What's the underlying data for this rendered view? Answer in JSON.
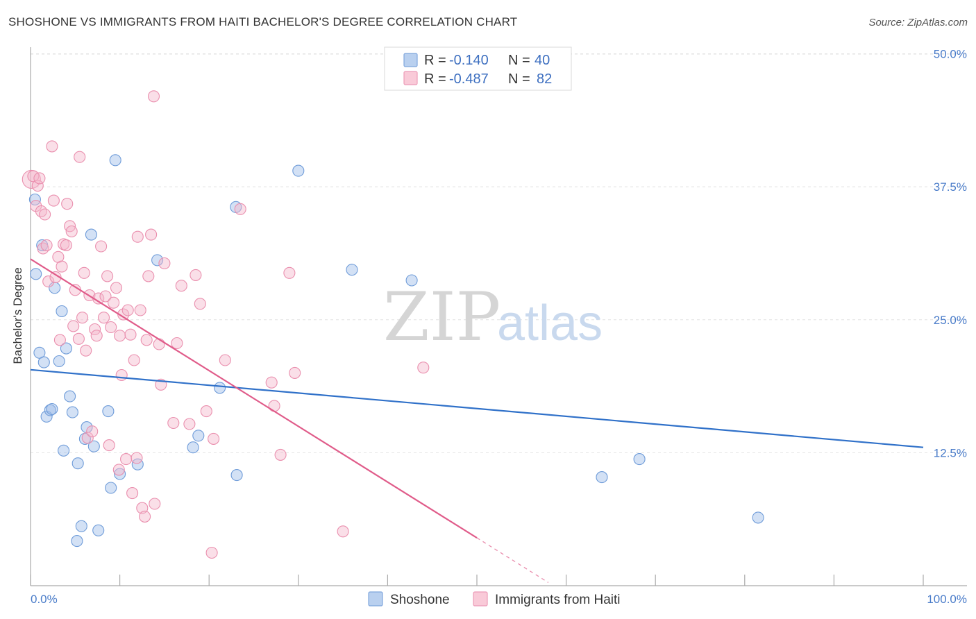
{
  "title": "SHOSHONE VS IMMIGRANTS FROM HAITI BACHELOR'S DEGREE CORRELATION CHART",
  "source": "Source: ZipAtlas.com",
  "watermark": {
    "zip": "ZIP",
    "atlas": "atlas"
  },
  "legend_top": {
    "rows": [
      {
        "r_label": "R = ",
        "r_value": "-0.140",
        "n_label": "N = ",
        "n_value": "40"
      },
      {
        "r_label": "R = ",
        "r_value": "-0.487",
        "n_label": "N = ",
        "n_value": "82"
      }
    ]
  },
  "chart_data": {
    "type": "scatter",
    "title": "SHOSHONE VS IMMIGRANTS FROM HAITI BACHELOR'S DEGREE CORRELATION CHART",
    "xlabel": "",
    "ylabel": "Bachelor's Degree",
    "xlim": [
      0,
      100
    ],
    "ylim": [
      0,
      52
    ],
    "x_tick_labels": [
      "0.0%",
      "100.0%"
    ],
    "y_ticks": [
      12.5,
      25.0,
      37.5,
      50.0
    ],
    "y_tick_labels": [
      "12.5%",
      "25.0%",
      "37.5%",
      "50.0%"
    ],
    "grid": "horizontal dashed",
    "legend_position": "bottom-center",
    "series": [
      {
        "name": "Shoshone",
        "color": "#9dbde8",
        "edge": "#6f9cd9",
        "line_color": "#3071c9",
        "trend": {
          "x0": 0,
          "y0": 20.3,
          "x1": 100,
          "y1": 13.0
        },
        "points": [
          [
            0.5,
            36.3
          ],
          [
            0.6,
            29.3
          ],
          [
            1.0,
            21.9
          ],
          [
            1.3,
            32.0
          ],
          [
            1.5,
            21.0
          ],
          [
            1.8,
            15.9
          ],
          [
            2.2,
            16.5
          ],
          [
            2.4,
            16.6
          ],
          [
            2.7,
            28.0
          ],
          [
            3.2,
            21.1
          ],
          [
            3.5,
            25.8
          ],
          [
            3.7,
            12.7
          ],
          [
            4.0,
            22.3
          ],
          [
            4.4,
            17.8
          ],
          [
            4.7,
            16.3
          ],
          [
            5.2,
            4.2
          ],
          [
            5.3,
            11.5
          ],
          [
            5.7,
            5.6
          ],
          [
            6.1,
            13.8
          ],
          [
            6.3,
            14.9
          ],
          [
            6.8,
            33.0
          ],
          [
            7.1,
            13.1
          ],
          [
            7.6,
            5.2
          ],
          [
            8.7,
            16.4
          ],
          [
            9.0,
            9.2
          ],
          [
            9.5,
            40.0
          ],
          [
            10.0,
            10.5
          ],
          [
            12.0,
            11.4
          ],
          [
            14.2,
            30.6
          ],
          [
            18.2,
            13.0
          ],
          [
            18.8,
            14.1
          ],
          [
            21.2,
            18.6
          ],
          [
            23.0,
            35.6
          ],
          [
            23.1,
            10.4
          ],
          [
            30.0,
            39.0
          ],
          [
            36.0,
            29.7
          ],
          [
            42.7,
            28.7
          ],
          [
            64.0,
            10.2
          ],
          [
            68.2,
            11.9
          ],
          [
            81.5,
            6.4
          ]
        ]
      },
      {
        "name": "Immigrants from Haiti",
        "color": "#f5b8cb",
        "edge": "#ea8fae",
        "line_color": "#e05c8a",
        "trend": {
          "x0": 0,
          "y0": 30.7,
          "x1": 50,
          "y1": 4.5
        },
        "trend_dashed": {
          "x0": 50,
          "y0": 4.5,
          "x1": 58,
          "y1": 0.3
        },
        "points": [
          [
            0.1,
            38.2
          ],
          [
            0.3,
            38.5
          ],
          [
            0.6,
            35.7
          ],
          [
            0.8,
            37.6
          ],
          [
            1.0,
            38.3
          ],
          [
            1.2,
            35.2
          ],
          [
            1.4,
            31.7
          ],
          [
            1.6,
            34.9
          ],
          [
            1.8,
            32.0
          ],
          [
            2.0,
            28.6
          ],
          [
            2.4,
            41.3
          ],
          [
            2.6,
            36.2
          ],
          [
            2.8,
            29.0
          ],
          [
            3.1,
            30.9
          ],
          [
            3.3,
            23.1
          ],
          [
            3.5,
            30.0
          ],
          [
            3.7,
            32.1
          ],
          [
            4.0,
            32.0
          ],
          [
            4.1,
            35.9
          ],
          [
            4.4,
            33.8
          ],
          [
            4.6,
            33.3
          ],
          [
            4.8,
            24.4
          ],
          [
            5.0,
            27.8
          ],
          [
            5.4,
            23.2
          ],
          [
            5.5,
            40.3
          ],
          [
            5.8,
            25.2
          ],
          [
            6.0,
            29.4
          ],
          [
            6.2,
            22.1
          ],
          [
            6.4,
            13.9
          ],
          [
            6.6,
            27.3
          ],
          [
            6.9,
            14.5
          ],
          [
            7.2,
            24.1
          ],
          [
            7.4,
            23.5
          ],
          [
            7.6,
            27.0
          ],
          [
            7.9,
            31.9
          ],
          [
            8.2,
            25.2
          ],
          [
            8.4,
            27.2
          ],
          [
            8.6,
            29.1
          ],
          [
            8.8,
            13.2
          ],
          [
            9.0,
            24.3
          ],
          [
            9.3,
            26.6
          ],
          [
            9.6,
            28.0
          ],
          [
            9.9,
            10.9
          ],
          [
            10.0,
            23.5
          ],
          [
            10.2,
            19.8
          ],
          [
            10.4,
            25.5
          ],
          [
            10.7,
            11.9
          ],
          [
            10.9,
            25.9
          ],
          [
            11.2,
            23.6
          ],
          [
            11.4,
            8.7
          ],
          [
            11.6,
            21.2
          ],
          [
            11.9,
            12.0
          ],
          [
            12.0,
            32.8
          ],
          [
            12.3,
            25.9
          ],
          [
            12.5,
            7.3
          ],
          [
            12.8,
            6.5
          ],
          [
            13.0,
            23.1
          ],
          [
            13.2,
            29.1
          ],
          [
            13.5,
            33.0
          ],
          [
            13.8,
            46.0
          ],
          [
            13.9,
            7.7
          ],
          [
            14.4,
            22.7
          ],
          [
            14.6,
            18.9
          ],
          [
            15.0,
            30.3
          ],
          [
            16.0,
            15.3
          ],
          [
            16.4,
            22.8
          ],
          [
            16.9,
            28.2
          ],
          [
            17.8,
            15.2
          ],
          [
            18.5,
            29.2
          ],
          [
            19.0,
            26.5
          ],
          [
            19.7,
            16.4
          ],
          [
            20.3,
            3.1
          ],
          [
            20.5,
            13.8
          ],
          [
            21.8,
            21.2
          ],
          [
            23.5,
            35.4
          ],
          [
            27.0,
            19.1
          ],
          [
            27.3,
            16.9
          ],
          [
            28.0,
            12.3
          ],
          [
            29.0,
            29.4
          ],
          [
            29.6,
            20.0
          ],
          [
            35.0,
            5.1
          ],
          [
            44.0,
            20.5
          ]
        ]
      }
    ]
  }
}
